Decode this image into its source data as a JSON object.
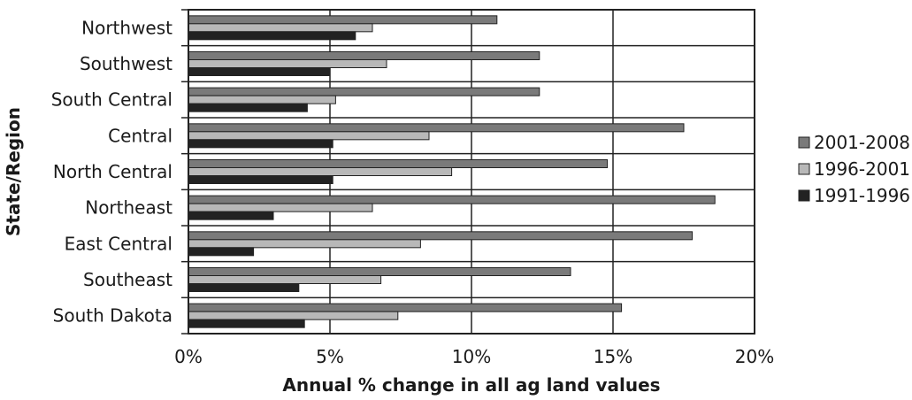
{
  "chart_data": {
    "type": "bar",
    "orientation": "horizontal",
    "title": "",
    "xlabel": "Annual % change in all ag land values",
    "ylabel": "State/Region",
    "xlim": [
      0,
      20
    ],
    "x_ticks": [
      0,
      5,
      10,
      15,
      20
    ],
    "x_tick_labels": [
      "0%",
      "5%",
      "10%",
      "15%",
      "20%"
    ],
    "grid": true,
    "legend_position": "right",
    "categories": [
      "Northwest",
      "Southwest",
      "South Central",
      "Central",
      "North Central",
      "Northeast",
      "East Central",
      "Southeast",
      "South Dakota"
    ],
    "series": [
      {
        "name": "2001-2008",
        "color": "#7a7a7a",
        "values": [
          10.9,
          12.4,
          12.4,
          17.5,
          14.8,
          18.6,
          17.8,
          13.5,
          15.3
        ]
      },
      {
        "name": "1996-2001",
        "color": "#b8b8b8",
        "values": [
          6.5,
          7.0,
          5.2,
          8.5,
          9.3,
          6.5,
          8.2,
          6.8,
          7.4
        ]
      },
      {
        "name": "1991-1996",
        "color": "#222222",
        "values": [
          5.9,
          5.0,
          4.2,
          5.1,
          5.1,
          3.0,
          2.3,
          3.9,
          4.1
        ]
      }
    ]
  }
}
